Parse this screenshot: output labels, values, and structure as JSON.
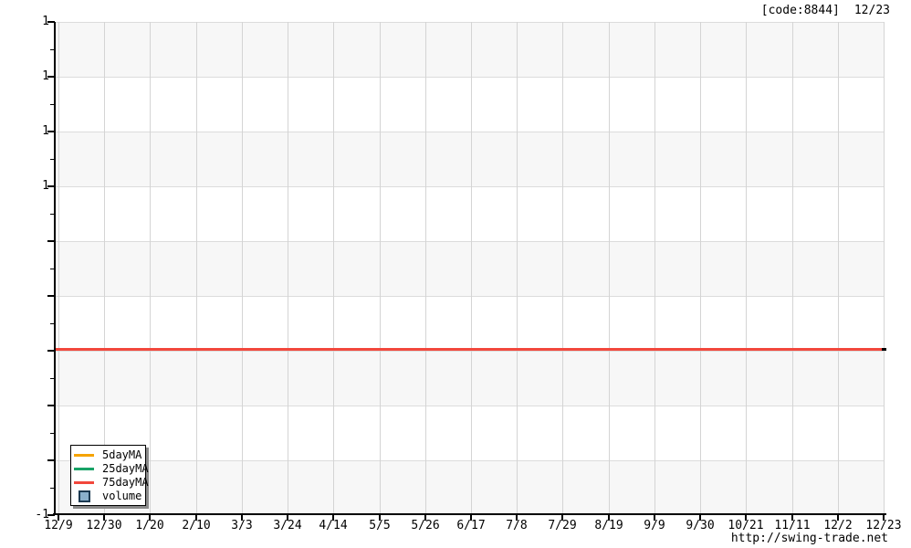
{
  "header": {
    "code": "[code:8844]",
    "date": "12/23"
  },
  "footer": {
    "url": "http://swing-trade.net"
  },
  "colors": {
    "ma5": "#f5a302",
    "ma25": "#18a266",
    "ma75": "#f2473c",
    "volume_fill": "#8ab0cc",
    "volume_border": "#1c3a52",
    "band": "#f7f7f7",
    "grid": "#d4d4d4"
  },
  "legend": {
    "items": [
      {
        "label": "5dayMA",
        "swatch": "line",
        "color": "#f5a302"
      },
      {
        "label": "25dayMA",
        "swatch": "line",
        "color": "#18a266"
      },
      {
        "label": "75dayMA",
        "swatch": "line",
        "color": "#f2473c"
      },
      {
        "label": "volume",
        "swatch": "square",
        "color": "#8ab0cc"
      }
    ]
  },
  "chart_data": {
    "type": "line",
    "title": "[code:8844]  12/23",
    "xlabel": "",
    "ylabel": "",
    "ylim": [
      -1,
      1
    ],
    "grid": true,
    "legend_position": "bottom-left",
    "x_tick_labels": [
      "12/9",
      "12/30",
      "1/20",
      "2/10",
      "3/3",
      "3/24",
      "4/14",
      "5/5",
      "5/26",
      "6/17",
      "7/8",
      "7/29",
      "8/19",
      "9/9",
      "9/30",
      "10/21",
      "11/11",
      "12/2",
      "12/23"
    ],
    "y_tick_labels": [
      "1",
      "1",
      "1",
      "1",
      "",
      "",
      "",
      "",
      "",
      "-1"
    ],
    "series": [
      {
        "name": "5dayMA",
        "color": "#f5a302",
        "visible": false
      },
      {
        "name": "25dayMA",
        "color": "#18a266",
        "visible": false
      },
      {
        "name": "75dayMA",
        "color": "#f2473c",
        "visible": true,
        "shape": "constant-horizontal-line",
        "value_estimate": -0.33,
        "x_span": [
          "12/9",
          "12/23"
        ]
      },
      {
        "name": "volume",
        "color": "#8ab0cc",
        "visible": false
      }
    ]
  }
}
